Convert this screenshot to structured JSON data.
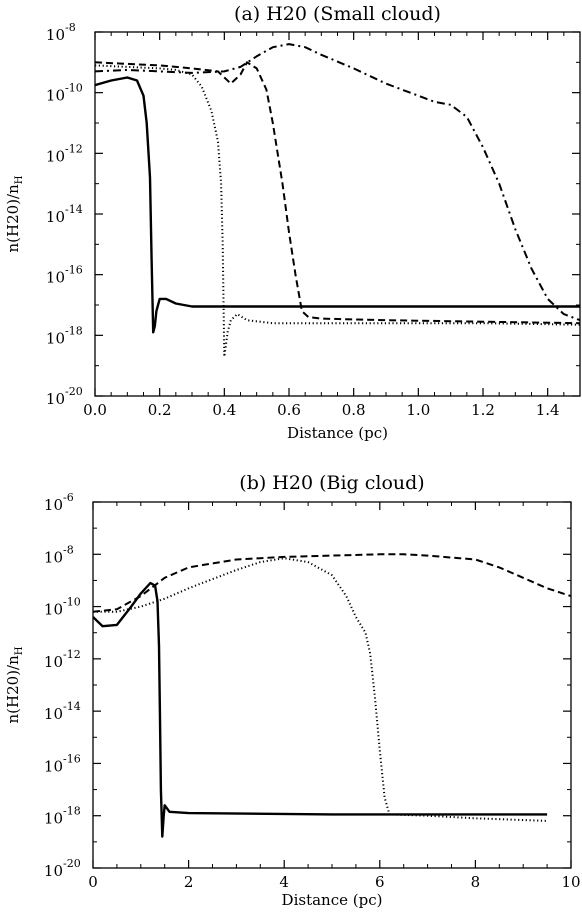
{
  "chart_data": [
    {
      "type": "line",
      "title": "(a) H20 (Small cloud)",
      "xlabel": "Distance (pc)",
      "ylabel": "n(H20)/n",
      "ylabel_sub": "H",
      "xlim": [
        0.0,
        1.5
      ],
      "ylim_log10": [
        -20,
        -8
      ],
      "y_scale": "log",
      "xticks": [
        "0.0",
        "0.2",
        "0.4",
        "0.6",
        "0.8",
        "1.0",
        "1.2",
        "1.4"
      ],
      "yticks": [
        {
          "base": "10",
          "exp": "-8"
        },
        {
          "base": "10",
          "exp": "-10"
        },
        {
          "base": "10",
          "exp": "-12"
        },
        {
          "base": "10",
          "exp": "-14"
        },
        {
          "base": "10",
          "exp": "-16"
        },
        {
          "base": "10",
          "exp": "-18"
        },
        {
          "base": "10",
          "exp": "-20"
        }
      ],
      "series": [
        {
          "style": "solid",
          "log10_points": [
            [
              0.0,
              -9.75
            ],
            [
              0.05,
              -9.6
            ],
            [
              0.1,
              -9.5
            ],
            [
              0.13,
              -9.6
            ],
            [
              0.15,
              -10.1
            ],
            [
              0.16,
              -11.0
            ],
            [
              0.17,
              -12.8
            ],
            [
              0.175,
              -15.5
            ],
            [
              0.18,
              -17.9
            ],
            [
              0.185,
              -17.7
            ],
            [
              0.19,
              -17.2
            ],
            [
              0.2,
              -16.8
            ],
            [
              0.22,
              -16.8
            ],
            [
              0.25,
              -16.95
            ],
            [
              0.3,
              -17.05
            ],
            [
              0.5,
              -17.05
            ],
            [
              1.0,
              -17.05
            ],
            [
              1.5,
              -17.05
            ]
          ]
        },
        {
          "style": "dotted",
          "log10_points": [
            [
              0.0,
              -9.1
            ],
            [
              0.1,
              -9.15
            ],
            [
              0.2,
              -9.2
            ],
            [
              0.25,
              -9.25
            ],
            [
              0.3,
              -9.4
            ],
            [
              0.33,
              -9.8
            ],
            [
              0.36,
              -10.6
            ],
            [
              0.38,
              -11.6
            ],
            [
              0.39,
              -13.0
            ],
            [
              0.395,
              -15.0
            ],
            [
              0.4,
              -18.7
            ],
            [
              0.405,
              -18.3
            ],
            [
              0.41,
              -17.9
            ],
            [
              0.42,
              -17.5
            ],
            [
              0.44,
              -17.3
            ],
            [
              0.47,
              -17.5
            ],
            [
              0.55,
              -17.6
            ],
            [
              0.8,
              -17.6
            ],
            [
              1.2,
              -17.6
            ],
            [
              1.5,
              -17.65
            ]
          ]
        },
        {
          "style": "dashed",
          "log10_points": [
            [
              0.0,
              -9.0
            ],
            [
              0.1,
              -9.05
            ],
            [
              0.2,
              -9.1
            ],
            [
              0.3,
              -9.2
            ],
            [
              0.38,
              -9.3
            ],
            [
              0.42,
              -9.7
            ],
            [
              0.45,
              -9.4
            ],
            [
              0.47,
              -9.0
            ],
            [
              0.5,
              -9.2
            ],
            [
              0.53,
              -9.9
            ],
            [
              0.55,
              -11.0
            ],
            [
              0.58,
              -13.0
            ],
            [
              0.6,
              -14.6
            ],
            [
              0.62,
              -16.0
            ],
            [
              0.64,
              -17.2
            ],
            [
              0.66,
              -17.4
            ],
            [
              0.7,
              -17.45
            ],
            [
              0.9,
              -17.5
            ],
            [
              1.2,
              -17.55
            ],
            [
              1.5,
              -17.6
            ]
          ]
        },
        {
          "style": "dashdot",
          "log10_points": [
            [
              0.0,
              -9.3
            ],
            [
              0.1,
              -9.25
            ],
            [
              0.2,
              -9.3
            ],
            [
              0.3,
              -9.35
            ],
            [
              0.4,
              -9.3
            ],
            [
              0.45,
              -9.15
            ],
            [
              0.5,
              -8.8
            ],
            [
              0.55,
              -8.5
            ],
            [
              0.6,
              -8.4
            ],
            [
              0.65,
              -8.5
            ],
            [
              0.7,
              -8.75
            ],
            [
              0.8,
              -9.2
            ],
            [
              0.9,
              -9.7
            ],
            [
              1.0,
              -10.1
            ],
            [
              1.05,
              -10.3
            ],
            [
              1.1,
              -10.4
            ],
            [
              1.15,
              -10.8
            ],
            [
              1.2,
              -11.8
            ],
            [
              1.25,
              -13.0
            ],
            [
              1.3,
              -14.5
            ],
            [
              1.35,
              -15.8
            ],
            [
              1.4,
              -16.8
            ],
            [
              1.45,
              -17.3
            ],
            [
              1.5,
              -17.5
            ]
          ]
        }
      ]
    },
    {
      "type": "line",
      "title": "(b) H20 (Big cloud)",
      "xlabel": "Distance (pc)",
      "ylabel": "n(H20)/n",
      "ylabel_sub": "H",
      "xlim": [
        0,
        10
      ],
      "ylim_log10": [
        -20,
        -6
      ],
      "y_scale": "log",
      "xticks": [
        "0",
        "2",
        "4",
        "6",
        "8",
        "10"
      ],
      "yticks": [
        {
          "base": "10",
          "exp": "-6"
        },
        {
          "base": "10",
          "exp": "-8"
        },
        {
          "base": "10",
          "exp": "-10"
        },
        {
          "base": "10",
          "exp": "-12"
        },
        {
          "base": "10",
          "exp": "-14"
        },
        {
          "base": "10",
          "exp": "-16"
        },
        {
          "base": "10",
          "exp": "-18"
        },
        {
          "base": "10",
          "exp": "-20"
        }
      ],
      "series": [
        {
          "style": "solid",
          "log10_points": [
            [
              0.0,
              -10.4
            ],
            [
              0.2,
              -10.75
            ],
            [
              0.5,
              -10.7
            ],
            [
              0.8,
              -10.0
            ],
            [
              1.0,
              -9.5
            ],
            [
              1.2,
              -9.1
            ],
            [
              1.3,
              -9.2
            ],
            [
              1.35,
              -9.8
            ],
            [
              1.38,
              -11.5
            ],
            [
              1.4,
              -14.0
            ],
            [
              1.42,
              -17.0
            ],
            [
              1.45,
              -18.8
            ],
            [
              1.48,
              -18.0
            ],
            [
              1.5,
              -17.6
            ],
            [
              1.6,
              -17.85
            ],
            [
              2.0,
              -17.9
            ],
            [
              5.0,
              -17.95
            ],
            [
              8.0,
              -17.95
            ],
            [
              9.5,
              -17.95
            ]
          ]
        },
        {
          "style": "dotted",
          "log10_points": [
            [
              0.0,
              -10.2
            ],
            [
              0.5,
              -10.2
            ],
            [
              1.0,
              -10.0
            ],
            [
              1.5,
              -9.7
            ],
            [
              2.0,
              -9.3
            ],
            [
              2.5,
              -8.95
            ],
            [
              3.0,
              -8.6
            ],
            [
              3.5,
              -8.3
            ],
            [
              4.0,
              -8.15
            ],
            [
              4.5,
              -8.3
            ],
            [
              5.0,
              -8.8
            ],
            [
              5.3,
              -9.6
            ],
            [
              5.5,
              -10.4
            ],
            [
              5.7,
              -11.0
            ],
            [
              5.8,
              -11.8
            ],
            [
              5.9,
              -13.5
            ],
            [
              6.0,
              -15.5
            ],
            [
              6.1,
              -17.3
            ],
            [
              6.2,
              -17.95
            ],
            [
              7.0,
              -18.0
            ],
            [
              8.0,
              -18.1
            ],
            [
              9.5,
              -18.2
            ]
          ]
        },
        {
          "style": "dashed",
          "log10_points": [
            [
              0.0,
              -10.2
            ],
            [
              0.5,
              -10.1
            ],
            [
              1.0,
              -9.6
            ],
            [
              1.5,
              -8.9
            ],
            [
              2.0,
              -8.5
            ],
            [
              2.5,
              -8.35
            ],
            [
              3.0,
              -8.2
            ],
            [
              3.5,
              -8.15
            ],
            [
              4.0,
              -8.1
            ],
            [
              5.0,
              -8.05
            ],
            [
              6.0,
              -8.0
            ],
            [
              6.5,
              -8.0
            ],
            [
              7.0,
              -8.05
            ],
            [
              8.0,
              -8.2
            ],
            [
              8.5,
              -8.5
            ],
            [
              9.0,
              -8.9
            ],
            [
              9.5,
              -9.3
            ],
            [
              10.0,
              -9.6
            ]
          ]
        }
      ]
    }
  ]
}
